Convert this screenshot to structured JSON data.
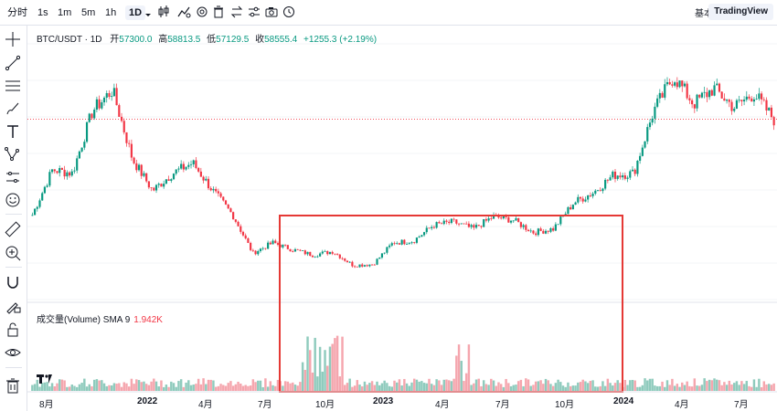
{
  "topbar": {
    "timeframes": [
      "分时",
      "1s",
      "1m",
      "5m",
      "1h",
      "1D"
    ],
    "active_timeframe": "1D",
    "layout_basic": "基本版",
    "layout_tv": "TradingView"
  },
  "legend": {
    "symbol": "BTC/USDT · 1D",
    "open_label": "开",
    "open": "57300.0",
    "high_label": "高",
    "high": "58813.5",
    "low_label": "低",
    "low": "57129.5",
    "close_label": "收",
    "close": "58555.4",
    "change": "+1255.3 (+2.19%)"
  },
  "volume_legend": {
    "label": "成交量(Volume) SMA 9",
    "value": "1.942K"
  },
  "x_axis_labels": [
    "8月",
    "2022",
    "4月",
    "7月",
    "10月",
    "2023",
    "4月",
    "7月",
    "10月",
    "2024",
    "4月",
    "7月"
  ],
  "colors": {
    "up": "#089981",
    "down": "#f23645",
    "highlight_box": "#e53935",
    "price_line": "#f23645"
  },
  "chart_data": {
    "type": "candlestick",
    "period": "1D",
    "series": [
      {
        "name": "BTC/USDT"
      }
    ],
    "close_path_points": [
      [
        "2021-07",
        31000
      ],
      [
        "2021-08",
        44000
      ],
      [
        "2021-09",
        43000
      ],
      [
        "2021-10",
        61000
      ],
      [
        "2021-11",
        67000
      ],
      [
        "2021-12",
        47000
      ],
      [
        "2022-01",
        38000
      ],
      [
        "2022-02",
        43000
      ],
      [
        "2022-03",
        46000
      ],
      [
        "2022-04",
        38000
      ],
      [
        "2022-05",
        31000
      ],
      [
        "2022-06",
        20000
      ],
      [
        "2022-07",
        23000
      ],
      [
        "2022-08",
        21000
      ],
      [
        "2022-09",
        19500
      ],
      [
        "2022-10",
        20500
      ],
      [
        "2022-11",
        16500
      ],
      [
        "2022-12",
        16800
      ],
      [
        "2023-01",
        23000
      ],
      [
        "2023-02",
        23500
      ],
      [
        "2023-03",
        28000
      ],
      [
        "2023-04",
        29000
      ],
      [
        "2023-05",
        27000
      ],
      [
        "2023-06",
        30500
      ],
      [
        "2023-07",
        29500
      ],
      [
        "2023-08",
        26000
      ],
      [
        "2023-09",
        27000
      ],
      [
        "2023-10",
        34500
      ],
      [
        "2023-11",
        37500
      ],
      [
        "2023-12",
        42500
      ],
      [
        "2024-01",
        43000
      ],
      [
        "2024-02",
        61000
      ],
      [
        "2024-03",
        71000
      ],
      [
        "2024-04",
        63000
      ],
      [
        "2024-05",
        67500
      ],
      [
        "2024-06",
        62000
      ],
      [
        "2024-07",
        66000
      ],
      [
        "2024-08",
        58500
      ]
    ],
    "highlight_range": [
      "2022-07",
      "2023-12"
    ],
    "price_line": 58555.4
  }
}
